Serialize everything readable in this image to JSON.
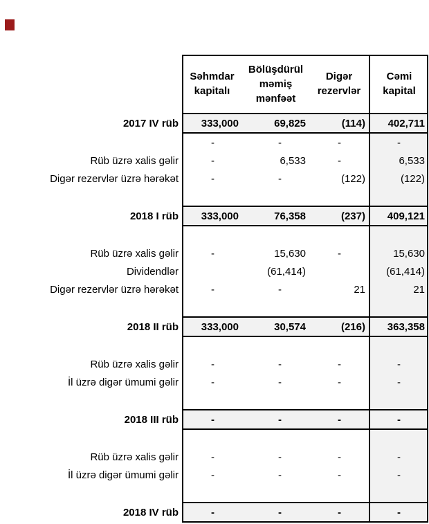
{
  "colors": {
    "red_mark": "#9b1b1b",
    "row_shade": "#f2f2f2",
    "border": "#000000"
  },
  "table": {
    "columns": [
      "Səhmdar\nkapitalı",
      "Bölüşdürül\nməmiş\nmənfəət",
      "Digər\nrezervlər",
      "Cəmi\nkapital"
    ],
    "rows": [
      {
        "type": "band",
        "label": "2017 IV rüb",
        "values": [
          "333,000",
          "69,825",
          "(114)",
          "402,711"
        ]
      },
      {
        "type": "sec",
        "label": "",
        "values": [
          "-",
          "-",
          "-",
          "-"
        ]
      },
      {
        "type": "sec",
        "label": "Rüb üzrə xalis gəlir",
        "values": [
          "-",
          "6,533",
          "-",
          "6,533"
        ]
      },
      {
        "type": "sec",
        "label": "Digər rezervlər üzrə hərəkət",
        "values": [
          "-",
          "-",
          "(122)",
          "(122)"
        ]
      },
      {
        "type": "sec",
        "label": "",
        "values": [
          "",
          "",
          "",
          ""
        ]
      },
      {
        "type": "band",
        "label": "2018 I rüb",
        "values": [
          "333,000",
          "76,358",
          "(237)",
          "409,121"
        ]
      },
      {
        "type": "sec",
        "label": "",
        "values": [
          "",
          "",
          "",
          ""
        ]
      },
      {
        "type": "sec",
        "label": "Rüb üzrə xalis gəlir",
        "values": [
          "-",
          "15,630",
          "-",
          "15,630"
        ]
      },
      {
        "type": "sec",
        "label": "Dividendlər",
        "values": [
          "",
          "(61,414)",
          "",
          "(61,414)"
        ]
      },
      {
        "type": "sec",
        "label": "Digər rezervlər üzrə hərəkət",
        "values": [
          "-",
          "-",
          "21",
          "21"
        ]
      },
      {
        "type": "sec",
        "label": "",
        "values": [
          "",
          "",
          "",
          ""
        ]
      },
      {
        "type": "band",
        "label": "2018 II rüb",
        "values": [
          "333,000",
          "30,574",
          "(216)",
          "363,358"
        ]
      },
      {
        "type": "sec",
        "label": "",
        "values": [
          "",
          "",
          "",
          ""
        ]
      },
      {
        "type": "sec",
        "label": "Rüb üzrə xalis gəlir",
        "values": [
          "-",
          "-",
          "-",
          "-"
        ]
      },
      {
        "type": "sec",
        "label": "İl üzrə digər ümumi gəlir",
        "values": [
          "-",
          "-",
          "-",
          "-"
        ]
      },
      {
        "type": "sec",
        "label": "",
        "values": [
          "",
          "",
          "",
          ""
        ]
      },
      {
        "type": "band",
        "label": "2018 III rüb",
        "values": [
          "-",
          "-",
          "-",
          "-"
        ]
      },
      {
        "type": "sec",
        "label": "",
        "values": [
          "",
          "",
          "",
          ""
        ]
      },
      {
        "type": "sec",
        "label": "Rüb üzrə xalis gəlir",
        "values": [
          "-",
          "-",
          "-",
          "-"
        ]
      },
      {
        "type": "sec",
        "label": "İl üzrə digər ümumi gəlir",
        "values": [
          "-",
          "-",
          "-",
          "-"
        ]
      },
      {
        "type": "sec",
        "label": "",
        "values": [
          "",
          "",
          "",
          ""
        ]
      },
      {
        "type": "band",
        "label": "2018 IV rüb",
        "values": [
          "-",
          "-",
          "-",
          "-"
        ]
      }
    ]
  }
}
